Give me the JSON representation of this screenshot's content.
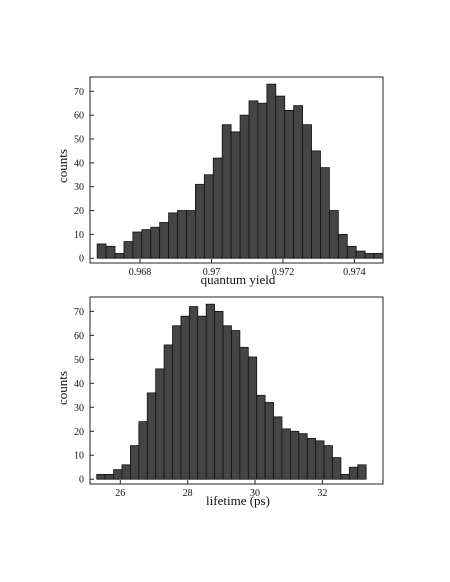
{
  "chart_data": [
    {
      "type": "bar",
      "title": "",
      "xlabel": "quantum yield",
      "ylabel": "counts",
      "xlim": [
        0.9666,
        0.9748
      ],
      "ylim": [
        -2,
        76
      ],
      "xticks": [
        0.968,
        0.97,
        0.972,
        0.974
      ],
      "xtick_labels": [
        "0.968",
        "0.97",
        "0.972",
        "0.974"
      ],
      "yticks": [
        0,
        10,
        20,
        30,
        40,
        50,
        60,
        70
      ],
      "ytick_labels": [
        "0",
        "10",
        "20",
        "30",
        "40",
        "50",
        "60",
        "70"
      ],
      "bin_start": 0.9668,
      "bin_width": 0.00025,
      "values": [
        6,
        5,
        2,
        7,
        11,
        12,
        13,
        15,
        19,
        20,
        20,
        31,
        35,
        42,
        56,
        53,
        60,
        66,
        65,
        73,
        68,
        62,
        64,
        56,
        45,
        38,
        20,
        10,
        5,
        3,
        2,
        2
      ],
      "bar_color": "#454545",
      "grid": false
    },
    {
      "type": "bar",
      "title": "",
      "xlabel": "lifetime (ps)",
      "ylabel": "counts",
      "xlim": [
        25.1,
        33.8
      ],
      "ylim": [
        -2,
        76
      ],
      "xticks": [
        26,
        28,
        30,
        32
      ],
      "xtick_labels": [
        "26",
        "28",
        "30",
        "32"
      ],
      "yticks": [
        0,
        10,
        20,
        30,
        40,
        50,
        60,
        70
      ],
      "ytick_labels": [
        "0",
        "10",
        "20",
        "30",
        "40",
        "50",
        "60",
        "70"
      ],
      "bin_start": 25.3,
      "bin_width": 0.25,
      "values": [
        2,
        2,
        4,
        6,
        14,
        24,
        36,
        46,
        56,
        64,
        68,
        72,
        68,
        73,
        70,
        64,
        62,
        55,
        51,
        35,
        32,
        26,
        21,
        20,
        19,
        17,
        16,
        14,
        9,
        2,
        5,
        6
      ],
      "bar_color": "#454545",
      "grid": false
    }
  ]
}
